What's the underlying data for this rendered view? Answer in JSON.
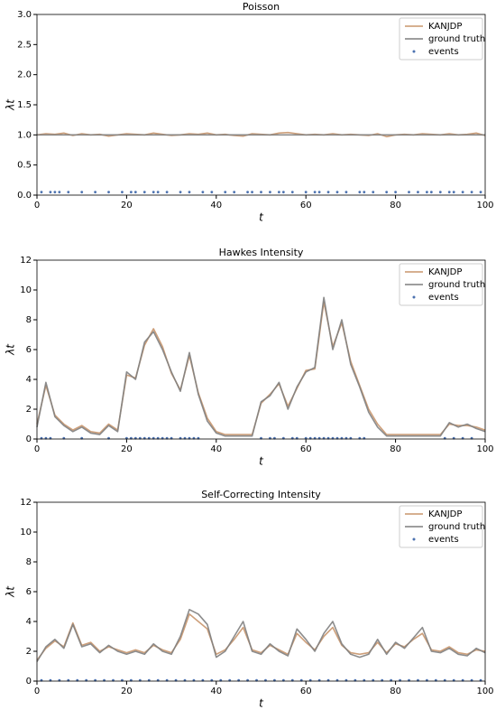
{
  "chart_data": [
    {
      "type": "line",
      "title": "Poisson",
      "xlabel": "t",
      "ylabel": "λt",
      "xlim": [
        0,
        100
      ],
      "ylim": [
        0,
        3
      ],
      "xticks": [
        0,
        20,
        40,
        60,
        80,
        100
      ],
      "yticks": [
        {
          "value": 0,
          "label": "0.0"
        },
        0.5,
        {
          "value": 1,
          "label": "1.0"
        },
        1.5,
        {
          "value": 2,
          "label": "2.0"
        },
        2.5,
        {
          "value": 3,
          "label": "3.0"
        }
      ],
      "legend": "upper right",
      "x": [
        0,
        2,
        4,
        6,
        8,
        10,
        12,
        14,
        16,
        18,
        20,
        22,
        24,
        26,
        28,
        30,
        32,
        34,
        36,
        38,
        40,
        42,
        44,
        46,
        48,
        50,
        52,
        54,
        56,
        58,
        60,
        62,
        64,
        66,
        68,
        70,
        72,
        74,
        76,
        78,
        80,
        82,
        84,
        86,
        88,
        90,
        92,
        94,
        96,
        98,
        100
      ],
      "series": [
        {
          "name": "KANJDP",
          "color": "#c8956c",
          "values": [
            1.0,
            1.02,
            1.01,
            1.03,
            0.99,
            1.02,
            1.0,
            1.01,
            0.98,
            1.0,
            1.02,
            1.01,
            1.0,
            1.03,
            1.01,
            0.99,
            1.0,
            1.02,
            1.01,
            1.03,
            1.0,
            1.01,
            0.99,
            0.98,
            1.02,
            1.01,
            1.0,
            1.03,
            1.04,
            1.02,
            1.0,
            1.01,
            1.0,
            1.02,
            1.0,
            1.01,
            1.0,
            0.99,
            1.02,
            0.97,
            1.0,
            1.01,
            1.0,
            1.02,
            1.01,
            1.0,
            1.02,
            1.0,
            1.01,
            1.03,
            0.99
          ]
        },
        {
          "name": "ground truth",
          "color": "#7f7f7f",
          "values": [
            1,
            1,
            1,
            1,
            1,
            1,
            1,
            1,
            1,
            1,
            1,
            1,
            1,
            1,
            1,
            1,
            1,
            1,
            1,
            1,
            1,
            1,
            1,
            1,
            1,
            1,
            1,
            1,
            1,
            1,
            1,
            1,
            1,
            1,
            1,
            1,
            1,
            1,
            1,
            1,
            1,
            1,
            1,
            1,
            1,
            1,
            1,
            1,
            1,
            1,
            1
          ]
        },
        {
          "name": "events",
          "color": "#4c72b0",
          "type": "scatter",
          "x": [
            1,
            3,
            4,
            5,
            7,
            10,
            13,
            16,
            19,
            21,
            22,
            24,
            26,
            27,
            29,
            32,
            34,
            37,
            39,
            42,
            44,
            47,
            48,
            50,
            52,
            54,
            55,
            57,
            60,
            62,
            63,
            65,
            67,
            69,
            72,
            73,
            75,
            78,
            80,
            83,
            85,
            87,
            88,
            90,
            92,
            93,
            95,
            97,
            99
          ],
          "values": [
            0.05,
            0.05,
            0.05,
            0.05,
            0.05,
            0.05,
            0.05,
            0.05,
            0.05,
            0.05,
            0.05,
            0.05,
            0.05,
            0.05,
            0.05,
            0.05,
            0.05,
            0.05,
            0.05,
            0.05,
            0.05,
            0.05,
            0.05,
            0.05,
            0.05,
            0.05,
            0.05,
            0.05,
            0.05,
            0.05,
            0.05,
            0.05,
            0.05,
            0.05,
            0.05,
            0.05,
            0.05,
            0.05,
            0.05,
            0.05,
            0.05,
            0.05,
            0.05,
            0.05,
            0.05,
            0.05,
            0.05,
            0.05,
            0.05
          ]
        }
      ]
    },
    {
      "type": "line",
      "title": "Hawkes Intensity",
      "xlabel": "t",
      "ylabel": "λt",
      "xlim": [
        0,
        100
      ],
      "ylim": [
        0,
        12
      ],
      "xticks": [
        0,
        20,
        40,
        60,
        80,
        100
      ],
      "yticks": [
        0,
        2,
        4,
        6,
        8,
        10,
        12
      ],
      "legend": "upper right",
      "x": [
        0,
        2,
        4,
        6,
        8,
        10,
        12,
        14,
        16,
        18,
        20,
        22,
        24,
        26,
        28,
        30,
        32,
        34,
        36,
        38,
        40,
        42,
        44,
        46,
        48,
        50,
        52,
        54,
        56,
        58,
        60,
        62,
        64,
        66,
        68,
        70,
        72,
        74,
        76,
        78,
        80,
        82,
        84,
        86,
        88,
        90,
        92,
        94,
        96,
        98,
        100
      ],
      "series": [
        {
          "name": "KANJDP",
          "color": "#c8956c",
          "values": [
            1.0,
            3.6,
            1.6,
            1.0,
            0.6,
            0.9,
            0.5,
            0.4,
            1.0,
            0.6,
            4.3,
            4.1,
            6.3,
            7.4,
            6.2,
            4.4,
            3.3,
            5.6,
            3.1,
            1.4,
            0.5,
            0.3,
            0.3,
            0.3,
            0.3,
            2.4,
            3.0,
            3.7,
            2.2,
            3.4,
            4.6,
            4.7,
            9.2,
            6.2,
            7.8,
            5.2,
            3.6,
            2.0,
            1.0,
            0.3,
            0.3,
            0.3,
            0.3,
            0.3,
            0.3,
            0.3,
            1.0,
            0.9,
            0.9,
            0.8,
            0.6
          ]
        },
        {
          "name": "ground truth",
          "color": "#7f7f7f",
          "values": [
            0.8,
            3.8,
            1.5,
            0.9,
            0.5,
            0.8,
            0.4,
            0.3,
            0.9,
            0.5,
            4.5,
            4.0,
            6.5,
            7.2,
            6.0,
            4.5,
            3.2,
            5.8,
            3.0,
            1.2,
            0.4,
            0.2,
            0.2,
            0.2,
            0.2,
            2.5,
            2.9,
            3.8,
            2.0,
            3.5,
            4.5,
            4.8,
            9.5,
            6.0,
            8.0,
            5.0,
            3.5,
            1.8,
            0.8,
            0.2,
            0.2,
            0.2,
            0.2,
            0.2,
            0.2,
            0.2,
            1.1,
            0.8,
            1.0,
            0.7,
            0.5
          ]
        },
        {
          "name": "events",
          "color": "#4c72b0",
          "type": "scatter",
          "x": [
            1,
            2,
            3,
            6,
            10,
            16,
            20,
            21,
            22,
            23,
            24,
            25,
            26,
            27,
            28,
            29,
            30,
            32,
            33,
            34,
            35,
            36,
            50,
            52,
            53,
            55,
            57,
            58,
            60,
            61,
            62,
            63,
            64,
            65,
            66,
            67,
            68,
            69,
            70,
            72,
            73,
            91,
            93,
            95,
            97
          ],
          "values": [
            0.05,
            0.05,
            0.05,
            0.05,
            0.05,
            0.05,
            0.05,
            0.05,
            0.05,
            0.05,
            0.05,
            0.05,
            0.05,
            0.05,
            0.05,
            0.05,
            0.05,
            0.05,
            0.05,
            0.05,
            0.05,
            0.05,
            0.05,
            0.05,
            0.05,
            0.05,
            0.05,
            0.05,
            0.05,
            0.05,
            0.05,
            0.05,
            0.05,
            0.05,
            0.05,
            0.05,
            0.05,
            0.05,
            0.05,
            0.05,
            0.05,
            0.05,
            0.05,
            0.05,
            0.05
          ]
        }
      ]
    },
    {
      "type": "line",
      "title": "Self-Correcting Intensity",
      "xlabel": "t",
      "ylabel": "λt",
      "xlim": [
        0,
        100
      ],
      "ylim": [
        0,
        12
      ],
      "xticks": [
        0,
        20,
        40,
        60,
        80,
        100
      ],
      "yticks": [
        0,
        2,
        4,
        6,
        8,
        10,
        12
      ],
      "legend": "upper right",
      "x": [
        0,
        2,
        4,
        6,
        8,
        10,
        12,
        14,
        16,
        18,
        20,
        22,
        24,
        26,
        28,
        30,
        32,
        34,
        36,
        38,
        40,
        42,
        44,
        46,
        48,
        50,
        52,
        54,
        56,
        58,
        60,
        62,
        64,
        66,
        68,
        70,
        72,
        74,
        76,
        78,
        80,
        82,
        84,
        86,
        88,
        90,
        92,
        94,
        96,
        98,
        100
      ],
      "series": [
        {
          "name": "KANJDP",
          "color": "#c8956c",
          "values": [
            1.4,
            2.2,
            2.7,
            2.3,
            3.9,
            2.4,
            2.6,
            2.0,
            2.3,
            2.1,
            1.9,
            2.1,
            1.9,
            2.4,
            2.1,
            1.9,
            2.8,
            4.5,
            4.0,
            3.5,
            1.8,
            2.1,
            2.8,
            3.6,
            2.1,
            1.9,
            2.4,
            2.1,
            1.8,
            3.2,
            2.6,
            2.1,
            3.0,
            3.6,
            2.4,
            1.9,
            1.8,
            1.9,
            2.6,
            1.9,
            2.5,
            2.3,
            2.8,
            3.2,
            2.1,
            2.0,
            2.3,
            1.9,
            1.8,
            2.1,
            2.0
          ]
        },
        {
          "name": "ground truth",
          "color": "#7f7f7f",
          "values": [
            1.3,
            2.3,
            2.8,
            2.2,
            3.8,
            2.3,
            2.5,
            1.9,
            2.4,
            2.0,
            1.8,
            2.0,
            1.8,
            2.5,
            2.0,
            1.8,
            3.0,
            4.8,
            4.5,
            3.8,
            1.6,
            2.0,
            3.0,
            4.0,
            2.0,
            1.8,
            2.5,
            2.0,
            1.7,
            3.5,
            2.8,
            2.0,
            3.2,
            4.0,
            2.5,
            1.8,
            1.6,
            1.8,
            2.8,
            1.8,
            2.6,
            2.2,
            2.9,
            3.6,
            2.0,
            1.9,
            2.2,
            1.8,
            1.7,
            2.2,
            1.9
          ]
        },
        {
          "name": "events",
          "color": "#4c72b0",
          "type": "scatter",
          "x": [
            1,
            3,
            5,
            7,
            9,
            11,
            13,
            15,
            17,
            19,
            21,
            23,
            25,
            27,
            29,
            31,
            33,
            35,
            37,
            39,
            41,
            43,
            45,
            47,
            49,
            51,
            53,
            55,
            57,
            59,
            61,
            63,
            65,
            67,
            69,
            71,
            73,
            75,
            77,
            79,
            81,
            83,
            85,
            87,
            89,
            91,
            93,
            95,
            97,
            99
          ],
          "values": [
            0.05,
            0.05,
            0.05,
            0.05,
            0.05,
            0.05,
            0.05,
            0.05,
            0.05,
            0.05,
            0.05,
            0.05,
            0.05,
            0.05,
            0.05,
            0.05,
            0.05,
            0.05,
            0.05,
            0.05,
            0.05,
            0.05,
            0.05,
            0.05,
            0.05,
            0.05,
            0.05,
            0.05,
            0.05,
            0.05,
            0.05,
            0.05,
            0.05,
            0.05,
            0.05,
            0.05,
            0.05,
            0.05,
            0.05,
            0.05,
            0.05,
            0.05,
            0.05,
            0.05,
            0.05,
            0.05,
            0.05,
            0.05,
            0.05,
            0.05
          ]
        }
      ]
    }
  ]
}
